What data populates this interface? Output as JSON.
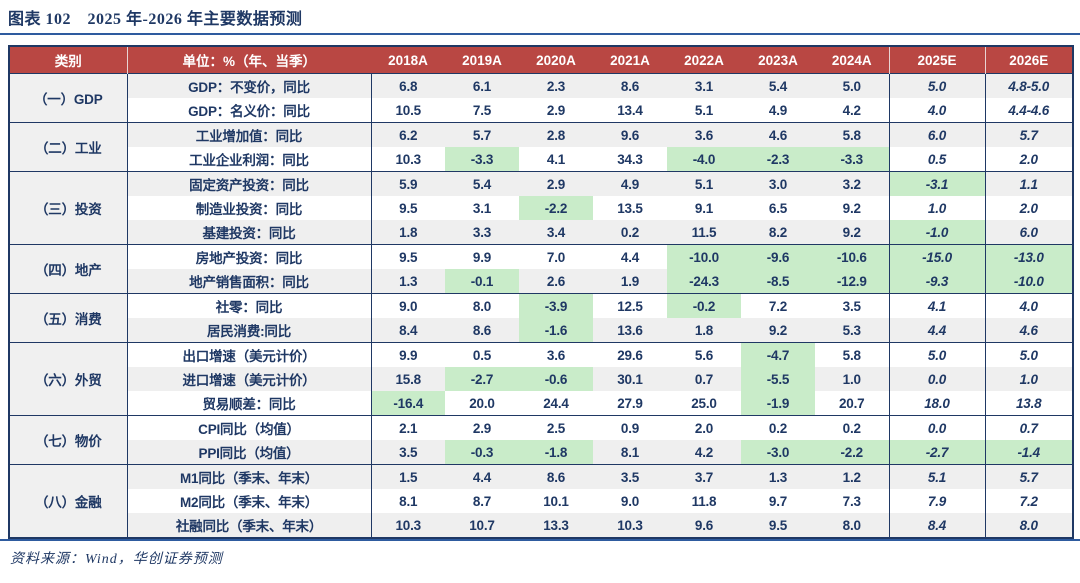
{
  "title": "图表 102　2025 年-2026 年主要数据预测",
  "source": "资料来源：Wind，华创证券预测",
  "colors": {
    "header_bg": "#B94743",
    "navy_text": "#1F3864",
    "negative_text": "#1E7A34",
    "negative_bg": "#C9ECC9",
    "stripe_bg": "#EFEFEF",
    "rule_blue": "#2E5B9F"
  },
  "table": {
    "header": {
      "category": "类别",
      "unit": "单位：%（年、当季）",
      "years": [
        "2018A",
        "2019A",
        "2020A",
        "2021A",
        "2022A",
        "2023A",
        "2024A",
        "2025E",
        "2026E"
      ]
    },
    "groups": [
      {
        "name": "（一）GDP",
        "rows": [
          {
            "label": "GDP：不变价，同比",
            "shaded": true,
            "values": [
              "6.8",
              "6.1",
              "2.3",
              "8.6",
              "3.1",
              "5.4",
              "5.0",
              "5.0",
              "4.8-5.0"
            ]
          },
          {
            "label": "GDP：名义价：同比",
            "shaded": false,
            "values": [
              "10.5",
              "7.5",
              "2.9",
              "13.4",
              "5.1",
              "4.9",
              "4.2",
              "4.0",
              "4.4-4.6"
            ]
          }
        ]
      },
      {
        "name": "（二）工业",
        "rows": [
          {
            "label": "工业增加值：同比",
            "shaded": true,
            "values": [
              "6.2",
              "5.7",
              "2.8",
              "9.6",
              "3.6",
              "4.6",
              "5.8",
              "6.0",
              "5.7"
            ]
          },
          {
            "label": "工业企业利润：同比",
            "shaded": false,
            "values": [
              "10.3",
              "-3.3",
              "4.1",
              "34.3",
              "-4.0",
              "-2.3",
              "-3.3",
              "0.5",
              "2.0"
            ]
          }
        ]
      },
      {
        "name": "（三）投资",
        "rows": [
          {
            "label": "固定资产投资：同比",
            "shaded": true,
            "values": [
              "5.9",
              "5.4",
              "2.9",
              "4.9",
              "5.1",
              "3.0",
              "3.2",
              "-3.1",
              "1.1"
            ]
          },
          {
            "label": "制造业投资：同比",
            "shaded": false,
            "values": [
              "9.5",
              "3.1",
              "-2.2",
              "13.5",
              "9.1",
              "6.5",
              "9.2",
              "1.0",
              "2.0"
            ]
          },
          {
            "label": "基建投资：同比",
            "shaded": true,
            "values": [
              "1.8",
              "3.3",
              "3.4",
              "0.2",
              "11.5",
              "8.2",
              "9.2",
              "-1.0",
              "6.0"
            ]
          }
        ]
      },
      {
        "name": "（四）地产",
        "rows": [
          {
            "label": "房地产投资：同比",
            "shaded": false,
            "values": [
              "9.5",
              "9.9",
              "7.0",
              "4.4",
              "-10.0",
              "-9.6",
              "-10.6",
              "-15.0",
              "-13.0"
            ]
          },
          {
            "label": "地产销售面积：同比",
            "shaded": true,
            "values": [
              "1.3",
              "-0.1",
              "2.6",
              "1.9",
              "-24.3",
              "-8.5",
              "-12.9",
              "-9.3",
              "-10.0"
            ]
          }
        ]
      },
      {
        "name": "（五）消费",
        "rows": [
          {
            "label": "社零：同比",
            "shaded": false,
            "values": [
              "9.0",
              "8.0",
              "-3.9",
              "12.5",
              "-0.2",
              "7.2",
              "3.5",
              "4.1",
              "4.0"
            ]
          },
          {
            "label": "居民消费:同比",
            "shaded": true,
            "values": [
              "8.4",
              "8.6",
              "-1.6",
              "13.6",
              "1.8",
              "9.2",
              "5.3",
              "4.4",
              "4.6"
            ]
          }
        ]
      },
      {
        "name": "（六）外贸",
        "rows": [
          {
            "label": "出口增速（美元计价）",
            "shaded": false,
            "values": [
              "9.9",
              "0.5",
              "3.6",
              "29.6",
              "5.6",
              "-4.7",
              "5.8",
              "5.0",
              "5.0"
            ]
          },
          {
            "label": "进口增速（美元计价）",
            "shaded": true,
            "values": [
              "15.8",
              "-2.7",
              "-0.6",
              "30.1",
              "0.7",
              "-5.5",
              "1.0",
              "0.0",
              "1.0"
            ]
          },
          {
            "label": "贸易顺差：同比",
            "shaded": false,
            "values": [
              "-16.4",
              "20.0",
              "24.4",
              "27.9",
              "25.0",
              "-1.9",
              "20.7",
              "18.0",
              "13.8"
            ]
          }
        ]
      },
      {
        "name": "（七）物价",
        "rows": [
          {
            "label": "CPI同比（均值）",
            "shaded": false,
            "values": [
              "2.1",
              "2.9",
              "2.5",
              "0.9",
              "2.0",
              "0.2",
              "0.2",
              "0.0",
              "0.7"
            ]
          },
          {
            "label": "PPI同比（均值）",
            "shaded": true,
            "values": [
              "3.5",
              "-0.3",
              "-1.8",
              "8.1",
              "4.2",
              "-3.0",
              "-2.2",
              "-2.7",
              "-1.4"
            ]
          }
        ]
      },
      {
        "name": "（八）金融",
        "rows": [
          {
            "label": "M1同比（季末、年末）",
            "shaded": true,
            "values": [
              "1.5",
              "4.4",
              "8.6",
              "3.5",
              "3.7",
              "1.3",
              "1.2",
              "5.1",
              "5.7"
            ]
          },
          {
            "label": "M2同比（季末、年末）",
            "shaded": false,
            "values": [
              "8.1",
              "8.7",
              "10.1",
              "9.0",
              "11.8",
              "9.7",
              "7.3",
              "7.9",
              "7.2"
            ]
          },
          {
            "label": "社融同比（季末、年末）",
            "shaded": true,
            "values": [
              "10.3",
              "10.7",
              "13.3",
              "10.3",
              "9.6",
              "9.5",
              "8.0",
              "8.4",
              "8.0"
            ]
          }
        ]
      }
    ]
  }
}
